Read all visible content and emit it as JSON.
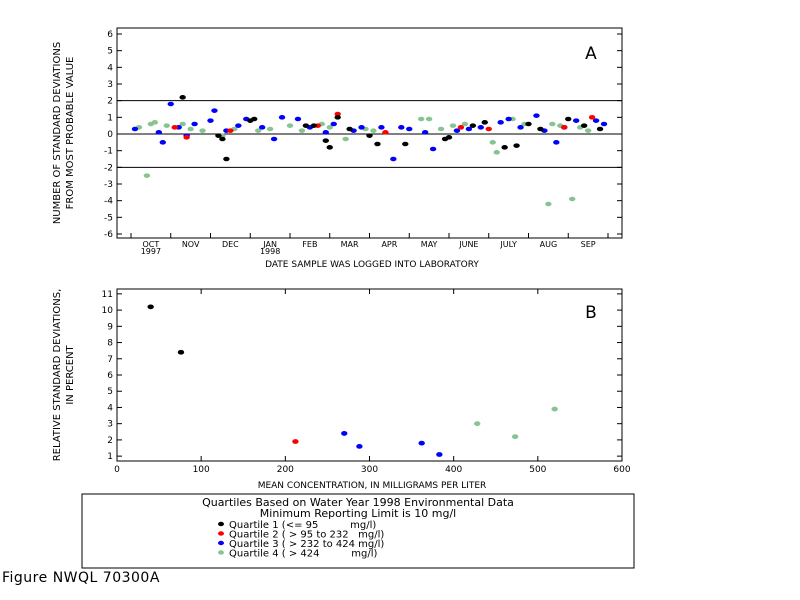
{
  "colors": {
    "q1": "#000000",
    "q2": "#ff0000",
    "q3": "#0000ff",
    "q4": "#88c490",
    "axis": "#000000"
  },
  "chart_data": [
    {
      "type": "scatter",
      "panel_label": "A",
      "ylabel": [
        "NUMBER OF STANDARD DEVIATIONS",
        "FROM MOST PROBABLE VALUE"
      ],
      "xlabel": "DATE SAMPLE WAS LOGGED INTO LABORATORY",
      "ylim": [
        -6,
        6
      ],
      "yticks": [
        6,
        5,
        4,
        3,
        2,
        1,
        0,
        -1,
        -2,
        -3,
        -4,
        -5,
        -6
      ],
      "xlim": [
        0,
        12
      ],
      "months": [
        "OCT",
        "NOV",
        "DEC",
        "JAN",
        "FEB",
        "MAR",
        "APR",
        "MAY",
        "JUNE",
        "JULY",
        "AUG",
        "SEP"
      ],
      "year_labels": [
        {
          "month_index": 0,
          "text": "1997"
        },
        {
          "month_index": 3,
          "text": "1998"
        }
      ],
      "reference_lines": [
        2,
        0,
        -2
      ],
      "grid": false,
      "series": [
        {
          "quartile": "q4",
          "points": [
            [
              0.2,
              0.4
            ],
            [
              0.4,
              -2.5
            ],
            [
              0.5,
              0.6
            ],
            [
              0.6,
              0.7
            ],
            [
              0.9,
              0.5
            ],
            [
              1.3,
              0.6
            ],
            [
              1.5,
              0.3
            ],
            [
              1.8,
              0.2
            ],
            [
              2.3,
              -0.1
            ],
            [
              2.6,
              0.3
            ],
            [
              3.2,
              0.2
            ],
            [
              3.5,
              0.3
            ],
            [
              4.0,
              0.5
            ],
            [
              4.3,
              0.2
            ],
            [
              4.8,
              0.6
            ],
            [
              5.0,
              0.4
            ],
            [
              5.4,
              -0.3
            ],
            [
              5.9,
              0.3
            ],
            [
              6.1,
              0.2
            ],
            [
              7.3,
              0.9
            ],
            [
              7.5,
              0.9
            ],
            [
              7.8,
              0.3
            ],
            [
              8.1,
              0.5
            ],
            [
              8.4,
              0.6
            ],
            [
              9.1,
              -0.5
            ],
            [
              9.2,
              -1.1
            ],
            [
              9.6,
              0.9
            ],
            [
              9.9,
              0.6
            ],
            [
              10.5,
              -4.2
            ],
            [
              10.6,
              0.6
            ],
            [
              10.8,
              0.5
            ],
            [
              11.1,
              -3.9
            ],
            [
              11.3,
              0.4
            ],
            [
              11.5,
              0.2
            ]
          ]
        },
        {
          "quartile": "q3",
          "points": [
            [
              0.1,
              0.3
            ],
            [
              0.7,
              0.1
            ],
            [
              0.8,
              -0.5
            ],
            [
              1.0,
              1.8
            ],
            [
              1.2,
              0.4
            ],
            [
              1.4,
              -0.1
            ],
            [
              1.6,
              0.6
            ],
            [
              2.0,
              0.8
            ],
            [
              2.1,
              1.4
            ],
            [
              2.4,
              0.2
            ],
            [
              2.7,
              0.5
            ],
            [
              2.9,
              0.9
            ],
            [
              3.3,
              0.4
            ],
            [
              3.6,
              -0.3
            ],
            [
              3.8,
              1.0
            ],
            [
              4.2,
              0.9
            ],
            [
              4.5,
              0.4
            ],
            [
              4.9,
              0.1
            ],
            [
              5.1,
              0.6
            ],
            [
              5.6,
              0.2
            ],
            [
              5.8,
              0.4
            ],
            [
              6.3,
              0.4
            ],
            [
              6.6,
              -1.5
            ],
            [
              6.8,
              0.4
            ],
            [
              7.0,
              0.3
            ],
            [
              7.4,
              0.1
            ],
            [
              7.6,
              -0.9
            ],
            [
              8.2,
              0.2
            ],
            [
              8.5,
              0.3
            ],
            [
              8.8,
              0.4
            ],
            [
              9.3,
              0.7
            ],
            [
              9.5,
              0.9
            ],
            [
              9.8,
              0.4
            ],
            [
              10.2,
              1.1
            ],
            [
              10.4,
              0.2
            ],
            [
              10.7,
              -0.5
            ],
            [
              10.9,
              0.4
            ],
            [
              11.2,
              0.8
            ],
            [
              11.7,
              0.8
            ],
            [
              11.9,
              0.6
            ]
          ]
        },
        {
          "quartile": "q2",
          "points": [
            [
              1.1,
              0.4
            ],
            [
              1.4,
              -0.2
            ],
            [
              2.5,
              0.2
            ],
            [
              4.7,
              0.5
            ],
            [
              5.2,
              1.2
            ],
            [
              6.4,
              0.1
            ],
            [
              8.3,
              0.4
            ],
            [
              9.0,
              0.3
            ],
            [
              10.9,
              0.4
            ],
            [
              11.6,
              1.0
            ]
          ]
        },
        {
          "quartile": "q1",
          "points": [
            [
              1.3,
              2.2
            ],
            [
              2.2,
              -0.1
            ],
            [
              2.3,
              -0.3
            ],
            [
              2.4,
              -1.5
            ],
            [
              3.0,
              0.8
            ],
            [
              3.1,
              0.9
            ],
            [
              4.4,
              0.5
            ],
            [
              4.6,
              0.5
            ],
            [
              4.9,
              -0.4
            ],
            [
              5.0,
              -0.8
            ],
            [
              5.2,
              1.0
            ],
            [
              5.5,
              0.3
            ],
            [
              6.0,
              -0.1
            ],
            [
              6.2,
              -0.6
            ],
            [
              6.9,
              -0.6
            ],
            [
              7.9,
              -0.3
            ],
            [
              8.0,
              -0.2
            ],
            [
              8.6,
              0.5
            ],
            [
              8.9,
              0.7
            ],
            [
              9.4,
              -0.8
            ],
            [
              9.7,
              -0.7
            ],
            [
              10.0,
              0.6
            ],
            [
              10.3,
              0.3
            ],
            [
              11.0,
              0.9
            ],
            [
              11.4,
              0.5
            ],
            [
              11.8,
              0.3
            ]
          ]
        }
      ]
    },
    {
      "type": "scatter",
      "panel_label": "B",
      "ylabel": [
        "RELATIVE STANDARD DEVIATIONS,",
        "IN PERCENT"
      ],
      "xlabel": "MEAN CONCENTRATION, IN MILLIGRAMS PER LITER",
      "xlim": [
        0,
        600
      ],
      "xticks": [
        0,
        100,
        200,
        300,
        400,
        500,
        600
      ],
      "ylim": [
        0.7,
        11.3
      ],
      "yticks": [
        11,
        10,
        9,
        8,
        7,
        6,
        5,
        4,
        3,
        2,
        1
      ],
      "grid": false,
      "points": [
        {
          "x": 40,
          "y": 10.2,
          "quartile": "q1"
        },
        {
          "x": 76,
          "y": 7.4,
          "quartile": "q1"
        },
        {
          "x": 212,
          "y": 1.9,
          "quartile": "q2"
        },
        {
          "x": 270,
          "y": 2.4,
          "quartile": "q3"
        },
        {
          "x": 288,
          "y": 1.6,
          "quartile": "q3"
        },
        {
          "x": 362,
          "y": 1.8,
          "quartile": "q3"
        },
        {
          "x": 383,
          "y": 1.1,
          "quartile": "q3"
        },
        {
          "x": 428,
          "y": 3.0,
          "quartile": "q4"
        },
        {
          "x": 473,
          "y": 2.2,
          "quartile": "q4"
        },
        {
          "x": 520,
          "y": 3.9,
          "quartile": "q4"
        }
      ]
    }
  ],
  "legend": {
    "title": "Quartiles Based on Water Year 1998 Environmental Data",
    "subtitle": "Minimum Reporting Limit is 10 mg/l",
    "entries": [
      {
        "quartile": "q1",
        "text": "Quartile 1 (<= 95          mg/l)"
      },
      {
        "quartile": "q2",
        "text": "Quartile 2 ( > 95 to 232   mg/l)"
      },
      {
        "quartile": "q3",
        "text": "Quartile 3 ( > 232 to 424 mg/l)"
      },
      {
        "quartile": "q4",
        "text": "Quartile 4 ( > 424          mg/l)"
      }
    ]
  },
  "figure_caption": "Figure NWQL 70300A"
}
